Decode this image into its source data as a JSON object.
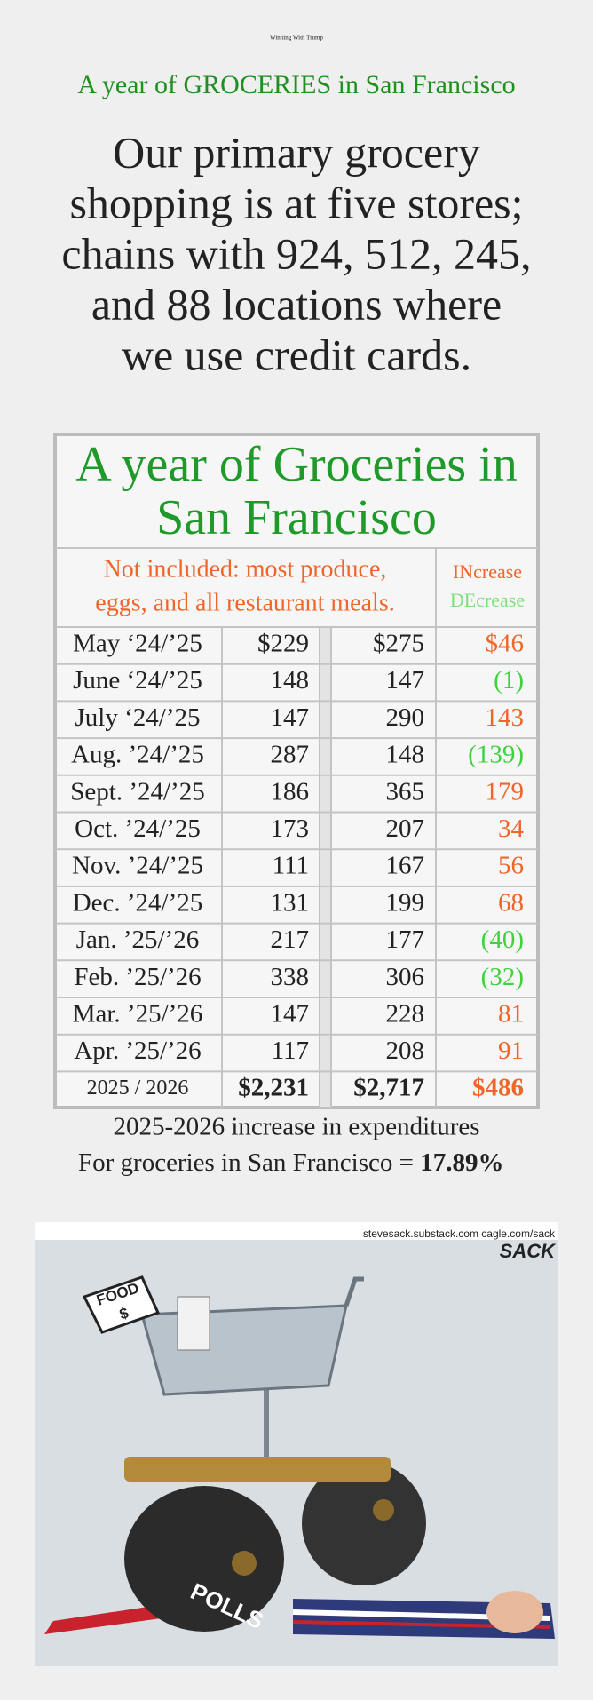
{
  "header": {
    "site_title": "Winning With Trump",
    "title": "A year of GROCERIES in San Francisco",
    "intro_lines": [
      "Our primary grocery",
      "shopping is at five stores;",
      "chains with 924, 512, 245,",
      "and 88 locations where",
      "we use credit cards."
    ]
  },
  "table": {
    "title_lines": [
      "A year of Groceries in",
      "San Francisco"
    ],
    "note_lines": [
      "Not included: most produce,",
      "eggs, and all restaurant meals."
    ],
    "legend": {
      "increase": "INcrease",
      "decrease": "DEcrease"
    },
    "rows": [
      [
        "May ‘24/’25",
        "$229",
        "$275",
        "$46"
      ],
      [
        "June ‘24/’25",
        "148",
        "147",
        "(1)"
      ],
      [
        "July ‘24/’25",
        "147",
        "290",
        "143"
      ],
      [
        "Aug. ’24/’25",
        "287",
        "148",
        "(139)"
      ],
      [
        "Sept. ’24/’25",
        "186",
        "365",
        "179"
      ],
      [
        "Oct. ’24/’25",
        "173",
        "207",
        "34"
      ],
      [
        "Nov. ’24/’25",
        "111",
        "167",
        "56"
      ],
      [
        "Dec. ’24/’25",
        "131",
        "199",
        "68"
      ],
      [
        "Jan. ’25/’26",
        "217",
        "177",
        "(40)"
      ],
      [
        "Feb. ’25/’26",
        "338",
        "306",
        "(32)"
      ],
      [
        "Mar. ’25/’26",
        "147",
        "228",
        "81"
      ],
      [
        "Apr. ’25/’26",
        "117",
        "208",
        "91"
      ]
    ],
    "total": [
      "2025 / 2026",
      "$2,231",
      "$2,717",
      "$486"
    ]
  },
  "summary": {
    "line1": "2025-2026 increase in expenditures",
    "line2_prefix": "For groceries in San Francisco = ",
    "line2_value": "17.89%"
  },
  "cartoon": {
    "credit": "stevesack.substack.com  cagle.com/sack",
    "signature": "SACK",
    "tag_lines": [
      "FOOD",
      "$"
    ],
    "roller_label": "POLLS"
  }
}
